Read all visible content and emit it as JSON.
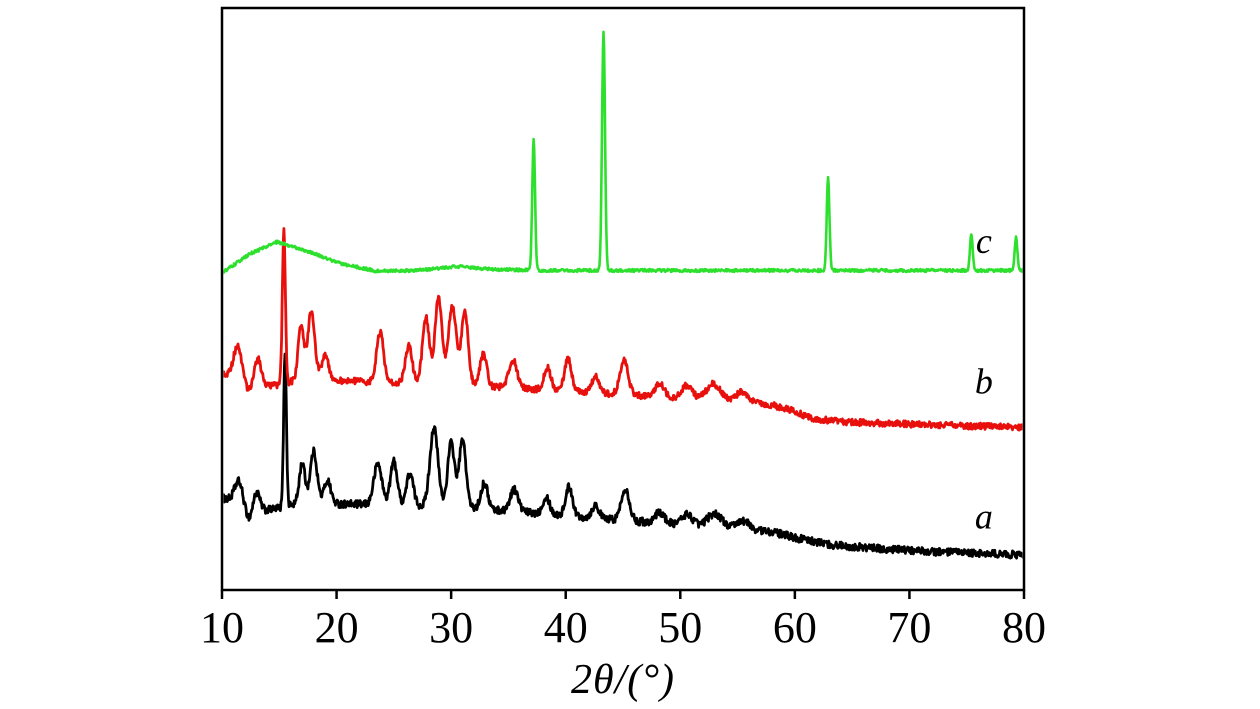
{
  "chart_data": {
    "type": "line",
    "title": "",
    "xlabel": "2θ/(°)",
    "ylabel": "",
    "xlim": [
      10,
      80
    ],
    "x_ticks": [
      10,
      20,
      30,
      40,
      50,
      60,
      70,
      80
    ],
    "grid": false,
    "legend_position": "inline-right",
    "series": [
      {
        "name": "a",
        "color": "#000000",
        "stroke_width": 2.8,
        "label": "a",
        "label_x": 76.5,
        "label_y": 0.12,
        "noise": 0.0065,
        "baseline": [
          [
            10,
            0.158
          ],
          [
            11,
            0.154
          ],
          [
            12.4,
            0.118
          ],
          [
            13.6,
            0.136
          ],
          [
            14.8,
            0.14
          ],
          [
            16.5,
            0.148
          ],
          [
            20,
            0.148
          ],
          [
            25,
            0.146
          ],
          [
            30,
            0.143
          ],
          [
            35,
            0.136
          ],
          [
            40,
            0.128
          ],
          [
            45,
            0.12
          ],
          [
            50,
            0.113
          ],
          [
            54,
            0.108
          ],
          [
            58,
            0.1
          ],
          [
            60,
            0.09
          ],
          [
            63,
            0.078
          ],
          [
            68,
            0.07
          ],
          [
            73,
            0.065
          ],
          [
            80,
            0.06
          ]
        ],
        "peaks": [
          [
            11.5,
            0.045,
            0.35
          ],
          [
            13.0,
            0.04,
            0.3
          ],
          [
            15.5,
            0.265,
            0.12
          ],
          [
            17.0,
            0.07,
            0.25
          ],
          [
            18.0,
            0.09,
            0.3
          ],
          [
            19.2,
            0.04,
            0.3
          ],
          [
            23.6,
            0.07,
            0.35
          ],
          [
            25.0,
            0.075,
            0.3
          ],
          [
            26.4,
            0.055,
            0.3
          ],
          [
            28.5,
            0.135,
            0.35
          ],
          [
            30.0,
            0.11,
            0.3
          ],
          [
            31.0,
            0.115,
            0.3
          ],
          [
            32.9,
            0.045,
            0.3
          ],
          [
            35.5,
            0.038,
            0.35
          ],
          [
            38.3,
            0.03,
            0.3
          ],
          [
            40.3,
            0.05,
            0.3
          ],
          [
            42.6,
            0.022,
            0.3
          ],
          [
            45.2,
            0.055,
            0.35
          ],
          [
            48.2,
            0.018,
            0.4
          ],
          [
            50.6,
            0.018,
            0.45
          ],
          [
            53.0,
            0.022,
            0.6
          ],
          [
            55.5,
            0.014,
            0.5
          ]
        ]
      },
      {
        "name": "b",
        "color": "#e8100c",
        "stroke_width": 2.8,
        "label": "b",
        "label_x": 76.5,
        "label_y": 0.352,
        "noise": 0.0055,
        "baseline": [
          [
            10,
            0.372
          ],
          [
            11,
            0.368
          ],
          [
            12.3,
            0.34
          ],
          [
            13.6,
            0.352
          ],
          [
            14.8,
            0.352
          ],
          [
            16.5,
            0.36
          ],
          [
            20,
            0.36
          ],
          [
            25,
            0.356
          ],
          [
            30,
            0.352
          ],
          [
            35,
            0.348
          ],
          [
            40,
            0.342
          ],
          [
            45,
            0.336
          ],
          [
            50,
            0.33
          ],
          [
            54,
            0.325
          ],
          [
            58,
            0.318
          ],
          [
            59.5,
            0.31
          ],
          [
            61.5,
            0.295
          ],
          [
            64,
            0.289
          ],
          [
            70,
            0.285
          ],
          [
            75,
            0.282
          ],
          [
            80,
            0.28
          ]
        ],
        "peaks": [
          [
            11.4,
            0.06,
            0.35
          ],
          [
            13.1,
            0.05,
            0.3
          ],
          [
            15.4,
            0.262,
            0.13
          ],
          [
            16.9,
            0.095,
            0.25
          ],
          [
            17.8,
            0.12,
            0.3
          ],
          [
            19.0,
            0.045,
            0.3
          ],
          [
            23.8,
            0.088,
            0.3
          ],
          [
            26.3,
            0.065,
            0.3
          ],
          [
            27.8,
            0.115,
            0.3
          ],
          [
            28.9,
            0.15,
            0.3
          ],
          [
            30.1,
            0.135,
            0.35
          ],
          [
            31.2,
            0.125,
            0.3
          ],
          [
            32.8,
            0.055,
            0.3
          ],
          [
            35.4,
            0.048,
            0.35
          ],
          [
            38.4,
            0.038,
            0.3
          ],
          [
            40.2,
            0.055,
            0.3
          ],
          [
            42.6,
            0.028,
            0.3
          ],
          [
            45.1,
            0.058,
            0.35
          ],
          [
            48.2,
            0.022,
            0.4
          ],
          [
            50.6,
            0.022,
            0.45
          ],
          [
            52.9,
            0.028,
            0.6
          ],
          [
            55.4,
            0.018,
            0.5
          ]
        ]
      },
      {
        "name": "c",
        "color": "#2ee02e",
        "stroke_width": 2.6,
        "label": "c",
        "label_x": 76.5,
        "label_y": 0.593,
        "noise": 0.0025,
        "baseline": [
          [
            10,
            0.545
          ],
          [
            12.5,
            0.578
          ],
          [
            14.8,
            0.598
          ],
          [
            17.5,
            0.582
          ],
          [
            20.5,
            0.56
          ],
          [
            23.5,
            0.548
          ],
          [
            27,
            0.549
          ],
          [
            30.5,
            0.556
          ],
          [
            33.5,
            0.551
          ],
          [
            38,
            0.549
          ],
          [
            80,
            0.549
          ]
        ],
        "peaks": [
          [
            37.2,
            0.225,
            0.12
          ],
          [
            43.3,
            0.412,
            0.13
          ],
          [
            62.9,
            0.158,
            0.12
          ],
          [
            75.4,
            0.062,
            0.12
          ],
          [
            79.3,
            0.056,
            0.12
          ]
        ]
      }
    ]
  }
}
